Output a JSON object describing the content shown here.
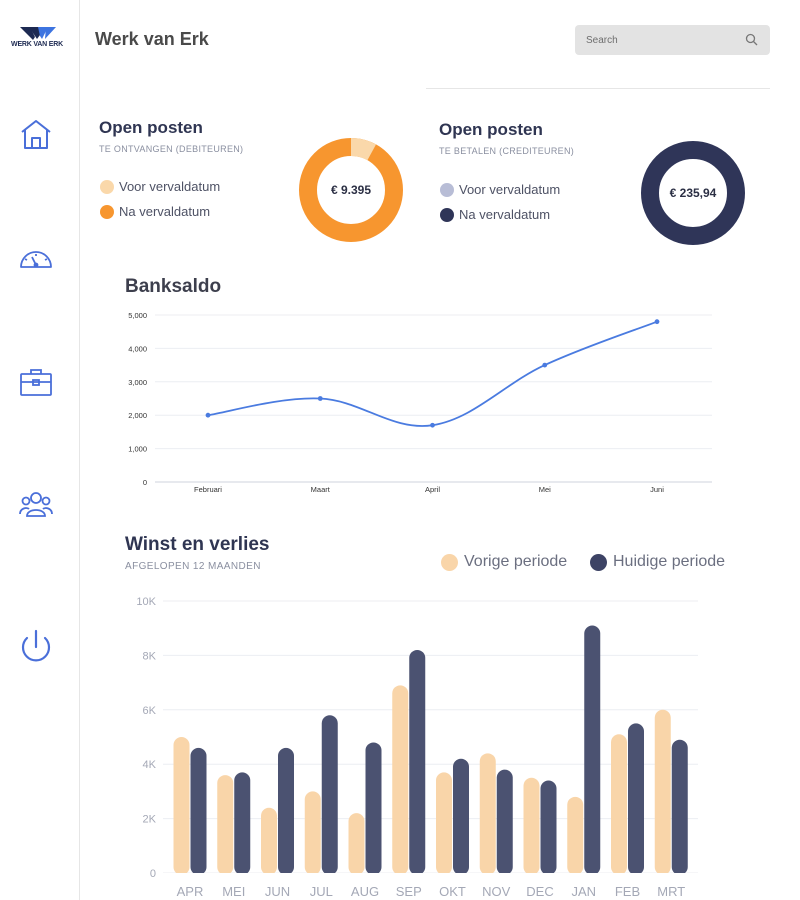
{
  "app": {
    "title": "Werk van Erk",
    "logo_text": "WERK VAN ERK"
  },
  "search": {
    "placeholder": "Search"
  },
  "sidebar": {
    "items": [
      {
        "name": "home",
        "icon": "home-icon"
      },
      {
        "name": "dashboard",
        "icon": "gauge-icon"
      },
      {
        "name": "portfolio",
        "icon": "briefcase-icon"
      },
      {
        "name": "users",
        "icon": "users-icon"
      },
      {
        "name": "power",
        "icon": "power-icon"
      }
    ]
  },
  "colors": {
    "orange": "#f7962f",
    "orange_light": "#fad8aa",
    "navy": "#2f3558",
    "navy_light": "#b8bdd6",
    "line": "#4a7be0",
    "bar_prev": "#f9d5a9",
    "bar_curr": "#4b5271",
    "icon_blue": "#4a6fd9"
  },
  "receivables": {
    "title": "Open posten",
    "subtitle": "TE ONTVANGEN (DEBITEUREN)",
    "legend": [
      "Voor vervaldatum",
      "Na vervaldatum"
    ],
    "amount": "€ 9.395",
    "share_before": 0.08,
    "share_after": 0.92
  },
  "payables": {
    "title": "Open posten",
    "subtitle": "TE BETALEN (CREDITEUREN)",
    "legend": [
      "Voor vervaldatum",
      "Na vervaldatum"
    ],
    "amount": "€ 235,94",
    "share_before": 0.0,
    "share_after": 1.0
  },
  "bank": {
    "title": "Banksaldo"
  },
  "pl": {
    "title": "Winst en verlies",
    "subtitle": "AFGELOPEN 12 MAANDEN",
    "legend": [
      "Vorige periode",
      "Huidige periode"
    ]
  },
  "chart_data": [
    {
      "type": "line",
      "title": "Banksaldo",
      "x": [
        "Februari",
        "Maart",
        "April",
        "Mei",
        "Juni"
      ],
      "values": [
        2000,
        2500,
        1700,
        3500,
        4800
      ],
      "ylim": [
        0,
        5000
      ],
      "yticks": [
        "0",
        "1,000",
        "2,000",
        "3,000",
        "4,000",
        "5,000"
      ],
      "grid": true
    },
    {
      "type": "bar",
      "title": "Winst en verlies",
      "categories": [
        "APR",
        "MEI",
        "JUN",
        "JUL",
        "AUG",
        "SEP",
        "OKT",
        "NOV",
        "DEC",
        "JAN",
        "FEB",
        "MRT"
      ],
      "series": [
        {
          "name": "Vorige periode",
          "values": [
            5000,
            3600,
            2400,
            3000,
            2200,
            6900,
            3700,
            4400,
            3500,
            2800,
            5100,
            6000
          ]
        },
        {
          "name": "Huidige periode",
          "values": [
            4600,
            3700,
            4600,
            5800,
            4800,
            8200,
            4200,
            3800,
            3400,
            9100,
            5500,
            4900
          ]
        }
      ],
      "ylim": [
        0,
        10000
      ],
      "yticks": [
        "0",
        "2K",
        "4K",
        "6K",
        "8K",
        "10K"
      ],
      "grid": true,
      "legend": "top-right"
    }
  ]
}
